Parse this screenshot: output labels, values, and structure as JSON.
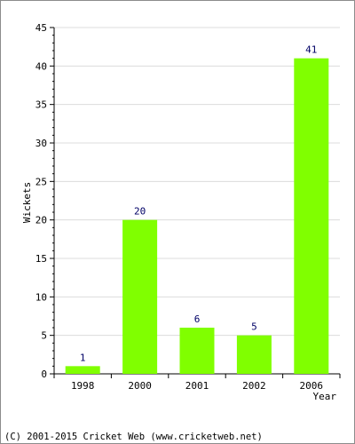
{
  "chart_data": {
    "type": "bar",
    "categories": [
      "1998",
      "2000",
      "2001",
      "2002",
      "2006"
    ],
    "values": [
      1,
      20,
      6,
      5,
      41
    ],
    "title": "",
    "xlabel": "Year",
    "ylabel": "Wickets",
    "ylim": [
      0,
      45
    ],
    "yticks": [
      0,
      5,
      10,
      15,
      20,
      25,
      30,
      35,
      40,
      45
    ],
    "grid": true,
    "bar_color": "#80ff00",
    "value_label_color": "#000066"
  },
  "footer": {
    "copyright": "(C) 2001-2015 Cricket Web (www.cricketweb.net)"
  }
}
